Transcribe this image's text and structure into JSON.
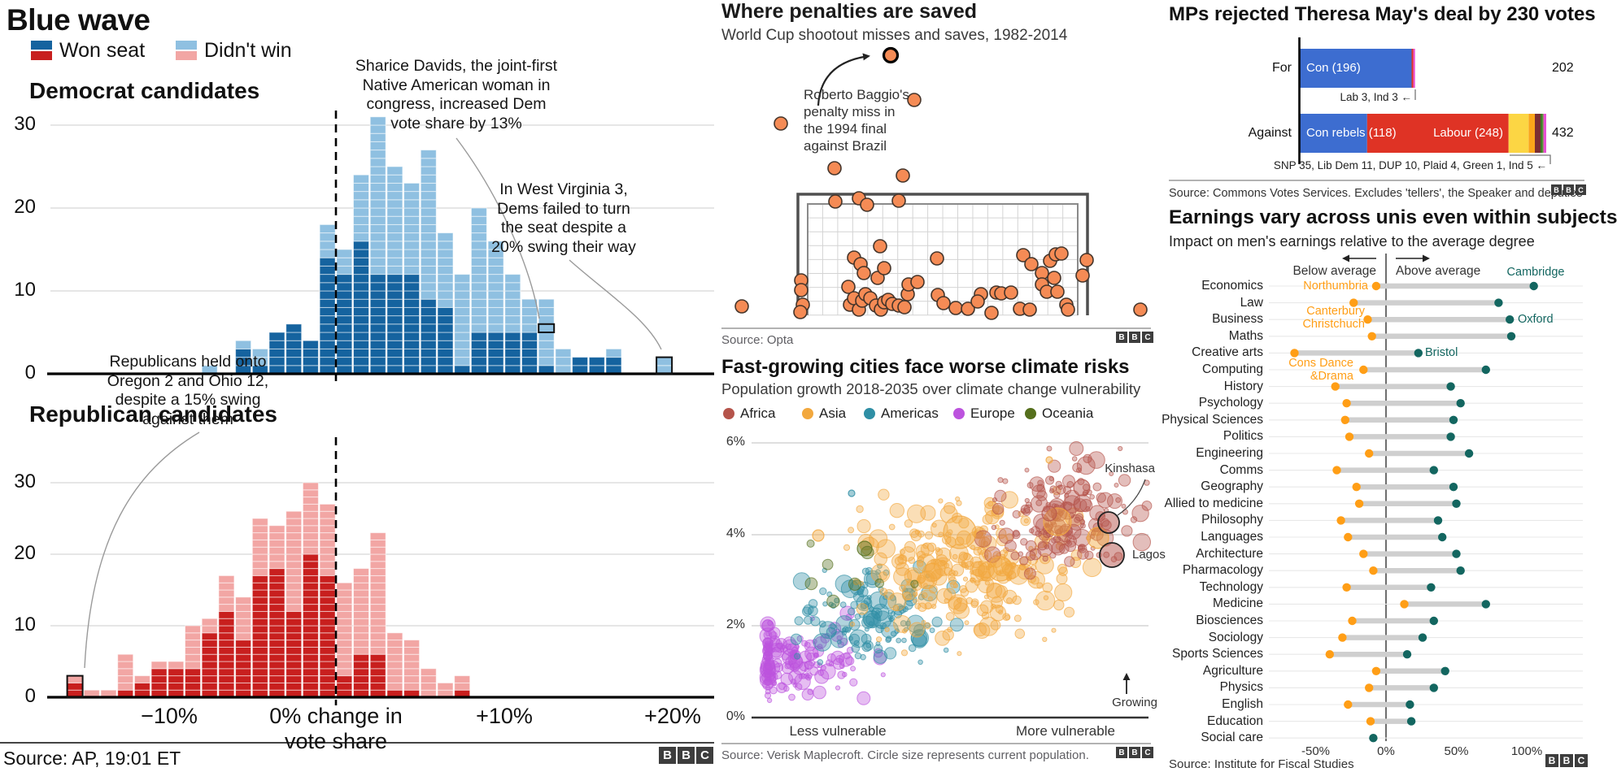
{
  "bbc_logo_letters": [
    "B",
    "B",
    "C"
  ],
  "colors": {
    "dem_won": "#15639F",
    "dem_lost": "#8FC0E1",
    "rep_won": "#C81F1E",
    "rep_lost": "#F2A6A4",
    "penalty_dot": "#F58B55",
    "penalty_dot_stroke": "#44342A",
    "con_blue": "#3D6DD0",
    "labour_red": "#DF3325",
    "snp_yellow": "#FCD644",
    "libdem_orange": "#FAA61A",
    "dup_maroon": "#7A2E32",
    "plaid_green": "#3F7D28",
    "green_green": "#6AB023",
    "ind_magenta": "#E94FD4",
    "earn_low_orange": "#FF9E16",
    "earn_high_teal": "#136660",
    "africa": "#B5544B",
    "asia": "#F2A83E",
    "americas": "#2F8FA5",
    "europe": "#BC53DE",
    "oceania": "#556F1C",
    "grid": "#D8D8D8",
    "callout": "#9A9A9A"
  },
  "panels": {
    "blue_wave": {
      "title": "Blue wave",
      "legend": [
        {
          "label": "Won seat"
        },
        {
          "label": "Didn't win"
        }
      ],
      "dem_heading": "Democrat candidates",
      "rep_heading": "Republican candidates",
      "y_ticks": [
        "0",
        "10",
        "20",
        "30"
      ],
      "x_ticks": [
        "−10%",
        "0% change in",
        "vote share",
        "+10%",
        "+20%"
      ],
      "annotations": {
        "sharice": [
          "Sharice Davids, the joint-first",
          "Native American woman in",
          "congress, increased Dem",
          "vote share by 13%"
        ],
        "wv": [
          "In West Virginia 3,",
          "Dems failed to turn",
          "the seat despite a",
          "20% swing their way"
        ],
        "oregon": [
          "Republicans held onto",
          "Oregon 2 and Ohio 12,",
          "despite a 15% swing",
          "against them"
        ]
      },
      "source": "Source: AP, 19:01 ET"
    },
    "penalties": {
      "title": "Where penalties are saved",
      "subtitle": "World Cup shootout misses and saves, 1982-2014",
      "annotation": [
        "Roberto Baggio's",
        "penalty miss in",
        "the 1994 final",
        "against Brazil"
      ],
      "source": "Source: Opta"
    },
    "climate": {
      "title": "Fast-growing cities face worse climate risks",
      "subtitle": "Population growth 2018-2035 over climate change vulnerability",
      "legend": [
        "Africa",
        "Asia",
        "Americas",
        "Europe",
        "Oceania"
      ],
      "y_ticks": [
        "6%",
        "4%",
        "2%",
        "0%"
      ],
      "x_label_left": "Less vulnerable",
      "x_label_right": "More vulnerable",
      "growing": "Growing",
      "kinshasa": "Kinshasa",
      "lagos": "Lagos",
      "source": "Source: Verisk Maplecroft. Circle size represents current population."
    },
    "mps": {
      "title": "MPs rejected Theresa May's deal by 230 votes",
      "for_label": "For",
      "against_label": "Against",
      "con_label": "Con (196)",
      "con_rebels_label": "Con rebels (118)",
      "labour_label": "Labour (248)",
      "for_total": "202",
      "against_total": "432",
      "callout_for": "Lab 3, Ind 3 ←",
      "callout_against": "SNP 35, Lib Dem 11, DUP 10, Plaid 4, Green 1, Ind 5 ←",
      "source": "Source: Commons Votes Services. Excludes 'tellers', the Speaker and deputies"
    },
    "earnings": {
      "title": "Earnings vary across unis even within subjects",
      "subtitle": "Impact on men's earnings relative to the average degree",
      "below": "Below average",
      "above": "Above average",
      "axis_ticks": [
        "-50%",
        "0%",
        "50%",
        "100%"
      ],
      "uni_labels": {
        "cambridge": "Cambridge",
        "northumbria": "Northumbria",
        "canterbury": [
          "Canterbury",
          "Christchuch"
        ],
        "oxford": "Oxford",
        "bristol": "Bristol",
        "consdance": [
          "Cons Dance",
          "&Drama"
        ]
      },
      "source": "Source: Institute for Fiscal Studies"
    }
  },
  "chart_data": [
    {
      "id": "blue_wave_histograms",
      "type": "bar",
      "title": "Blue wave",
      "xlabel": "% change in vote share",
      "x_ticks_pct": [
        -10,
        0,
        10,
        20
      ],
      "ylim": [
        0,
        33
      ],
      "y_gridlines": [
        10,
        20,
        30
      ],
      "bin_width_pct": 1,
      "democrat_bins": [
        [
          -8,
          0,
          1
        ],
        [
          -6,
          3,
          1
        ],
        [
          -5,
          1,
          2
        ],
        [
          -4,
          5,
          0
        ],
        [
          -3,
          6,
          0
        ],
        [
          -2,
          4,
          0
        ],
        [
          -1,
          14,
          4
        ],
        [
          0,
          12,
          3
        ],
        [
          1,
          16,
          8
        ],
        [
          2,
          12,
          19
        ],
        [
          3,
          12,
          13
        ],
        [
          4,
          12,
          11
        ],
        [
          5,
          9,
          18
        ],
        [
          6,
          8,
          9
        ],
        [
          7,
          1,
          11
        ],
        [
          8,
          5,
          15
        ],
        [
          9,
          5,
          11
        ],
        [
          10,
          5,
          7
        ],
        [
          11,
          5,
          4
        ],
        [
          12,
          1,
          8
        ],
        [
          13,
          0,
          3
        ],
        [
          14,
          2,
          0
        ],
        [
          15,
          2,
          0
        ],
        [
          16,
          2,
          1
        ],
        [
          19,
          0,
          2
        ]
      ],
      "republican_bins": [
        [
          -16,
          2,
          1
        ],
        [
          -15,
          0,
          1
        ],
        [
          -14,
          0,
          1
        ],
        [
          -13,
          1,
          5
        ],
        [
          -12,
          2,
          1
        ],
        [
          -11,
          4,
          1
        ],
        [
          -10,
          4,
          1
        ],
        [
          -9,
          4,
          6
        ],
        [
          -8,
          9,
          2
        ],
        [
          -7,
          12,
          5
        ],
        [
          -6,
          8,
          6
        ],
        [
          -5,
          17,
          8
        ],
        [
          -4,
          18,
          6
        ],
        [
          -3,
          12,
          14
        ],
        [
          -2,
          20,
          10
        ],
        [
          -1,
          17,
          10
        ],
        [
          0,
          3,
          13
        ],
        [
          1,
          6,
          12
        ],
        [
          2,
          6,
          17
        ],
        [
          3,
          1,
          8
        ],
        [
          4,
          1,
          7
        ],
        [
          5,
          0,
          4
        ],
        [
          6,
          0,
          2
        ],
        [
          7,
          1,
          2
        ]
      ],
      "highlights": {
        "dem_segment": {
          "bin": 12,
          "u1": 5,
          "u2": 6
        },
        "dem_bar": {
          "bin": 19
        },
        "rep_bar": {
          "bin": -16
        }
      }
    },
    {
      "id": "penalties",
      "type": "scatter",
      "title": "Where penalties are saved",
      "baggio_dot": [
        1095,
        68
      ],
      "dots": [
        [
          912,
          377
        ],
        [
          1124,
          123
        ],
        [
          960,
          152
        ],
        [
          1026,
          207
        ],
        [
          1110,
          216
        ],
        [
          1027,
          248
        ],
        [
          1056,
          244
        ],
        [
          1066,
          252
        ],
        [
          1105,
          247
        ],
        [
          985,
          345
        ],
        [
          985,
          357
        ],
        [
          987,
          375
        ],
        [
          984,
          384
        ],
        [
          1082,
          303
        ],
        [
          1050,
          317
        ],
        [
          1058,
          325
        ],
        [
          1062,
          336
        ],
        [
          1079,
          342
        ],
        [
          1087,
          330
        ],
        [
          1152,
          318
        ],
        [
          1043,
          353
        ],
        [
          1045,
          375
        ],
        [
          1050,
          367
        ],
        [
          1056,
          381
        ],
        [
          1060,
          370
        ],
        [
          1064,
          362
        ],
        [
          1070,
          367
        ],
        [
          1077,
          376
        ],
        [
          1083,
          381
        ],
        [
          1087,
          372
        ],
        [
          1092,
          369
        ],
        [
          1097,
          374
        ],
        [
          1105,
          376
        ],
        [
          1112,
          378
        ],
        [
          1116,
          362
        ],
        [
          1117,
          350
        ],
        [
          1128,
          347
        ],
        [
          1153,
          363
        ],
        [
          1160,
          373
        ],
        [
          1175,
          379
        ],
        [
          1190,
          380
        ],
        [
          1206,
          362
        ],
        [
          1202,
          371
        ],
        [
          1219,
          385
        ],
        [
          1225,
          360
        ],
        [
          1231,
          361
        ],
        [
          1243,
          360
        ],
        [
          1254,
          380
        ],
        [
          1266,
          381
        ],
        [
          1258,
          314
        ],
        [
          1268,
          325
        ],
        [
          1281,
          336
        ],
        [
          1291,
          321
        ],
        [
          1298,
          313
        ],
        [
          1305,
          312
        ],
        [
          1296,
          342
        ],
        [
          1281,
          350
        ],
        [
          1287,
          359
        ],
        [
          1300,
          359
        ],
        [
          1336,
          320
        ],
        [
          1331,
          339
        ],
        [
          1311,
          375
        ],
        [
          1313,
          381
        ],
        [
          1402,
          381
        ]
      ]
    },
    {
      "id": "mps_vote",
      "type": "bar",
      "title": "MPs rejected Theresa May's deal by 230 votes",
      "categories": [
        "For",
        "Against"
      ],
      "for_segments": [
        [
          "Con",
          196,
          "con_blue"
        ],
        [
          "Lab",
          3,
          "labour_red"
        ],
        [
          "Ind",
          3,
          "ind_magenta"
        ]
      ],
      "against_segments": [
        [
          "Con rebels",
          118,
          "con_blue"
        ],
        [
          "Labour",
          248,
          "labour_red"
        ],
        [
          "SNP",
          35,
          "snp_yellow"
        ],
        [
          "Lib Dem",
          11,
          "libdem_orange"
        ],
        [
          "DUP",
          10,
          "dup_maroon"
        ],
        [
          "Plaid",
          4,
          "plaid_green"
        ],
        [
          "Green",
          1,
          "green_green"
        ],
        [
          "Ind",
          5,
          "ind_magenta"
        ]
      ],
      "totals": {
        "for": 202,
        "against": 432
      }
    },
    {
      "id": "climate_bubbles",
      "type": "scatter",
      "title": "Fast-growing cities face worse climate risks",
      "ylabel": "Population growth 2018-2035",
      "ylim_pct": [
        0,
        6
      ],
      "clusters": [
        {
          "continent": "europe",
          "n": 170,
          "cx": 965,
          "cy": 812,
          "sx": 90,
          "sy": 40,
          "rmin": 2.5,
          "rmax": 10
        },
        {
          "continent": "americas",
          "n": 135,
          "cx": 1068,
          "cy": 762,
          "sx": 85,
          "sy": 50,
          "rmin": 2.5,
          "rmax": 11
        },
        {
          "continent": "asia",
          "n": 280,
          "cx": 1190,
          "cy": 700,
          "sx": 120,
          "sy": 78,
          "rmin": 2.5,
          "rmax": 12
        },
        {
          "continent": "oceania",
          "n": 8,
          "cx": 1050,
          "cy": 715,
          "sx": 85,
          "sy": 55,
          "rmin": 4,
          "rmax": 9
        },
        {
          "continent": "africa",
          "n": 165,
          "cx": 1310,
          "cy": 628,
          "sx": 78,
          "sy": 64,
          "rmin": 2.5,
          "rmax": 11
        }
      ],
      "big_bubbles": [
        {
          "continent": "asia",
          "x": 1180,
          "y": 655,
          "r": 20
        },
        {
          "continent": "asia",
          "x": 1300,
          "y": 642,
          "r": 17
        },
        {
          "continent": "asia",
          "x": 1230,
          "y": 700,
          "r": 15
        },
        {
          "continent": "asia",
          "x": 1350,
          "y": 662,
          "r": 13
        },
        {
          "continent": "asia",
          "x": 1006,
          "y": 659,
          "r": 7
        },
        {
          "continent": "asia",
          "x": 1290,
          "y": 566,
          "r": 4
        },
        {
          "continent": "americas",
          "x": 1047,
          "y": 607,
          "r": 4
        },
        {
          "continent": "oceania",
          "x": 1063,
          "y": 675,
          "r": 9
        },
        {
          "continent": "africa",
          "x": 1330,
          "y": 600,
          "r": 10
        },
        {
          "continent": "africa",
          "x": 1290,
          "y": 632,
          "r": 9
        }
      ],
      "labeled_points": [
        {
          "name": "Kinshasa",
          "x": 1363,
          "y": 643,
          "r": 13,
          "growth_pct": 4.2
        },
        {
          "name": "Lagos",
          "x": 1367,
          "y": 683,
          "r": 15,
          "growth_pct": 3.6
        }
      ]
    },
    {
      "id": "earnings_by_subject",
      "type": "dumbbell",
      "title": "Earnings vary across unis even within subjects",
      "x_ticks_pct": [
        -50,
        0,
        50,
        100
      ],
      "rows": [
        [
          "Economics",
          -7,
          105
        ],
        [
          "Law",
          -23,
          80
        ],
        [
          "Business",
          -13,
          88
        ],
        [
          "Maths",
          -10,
          89
        ],
        [
          "Creative arts",
          -65,
          23
        ],
        [
          "Computing",
          -16,
          71
        ],
        [
          "History",
          -36,
          46
        ],
        [
          "Psychology",
          -28,
          53
        ],
        [
          "Physical Sciences",
          -29,
          48
        ],
        [
          "Politics",
          -26,
          46
        ],
        [
          "Engineering",
          -12,
          59
        ],
        [
          "Comms",
          -35,
          34
        ],
        [
          "Geography",
          -21,
          48
        ],
        [
          "Allied to medicine",
          -19,
          50
        ],
        [
          "Philosophy",
          -32,
          37
        ],
        [
          "Languages",
          -27,
          40
        ],
        [
          "Architecture",
          -16,
          50
        ],
        [
          "Pharmacology",
          -9,
          53
        ],
        [
          "Technology",
          -28,
          32
        ],
        [
          "Medicine",
          13,
          71
        ],
        [
          "Biosciences",
          -24,
          34
        ],
        [
          "Sociology",
          -31,
          26
        ],
        [
          "Sports Sciences",
          -40,
          15
        ],
        [
          "Agriculture",
          -7,
          42
        ],
        [
          "Physics",
          -12,
          34
        ],
        [
          "English",
          -27,
          17
        ],
        [
          "Education",
          -11,
          18
        ],
        [
          "Social care",
          -9,
          null
        ]
      ]
    }
  ]
}
